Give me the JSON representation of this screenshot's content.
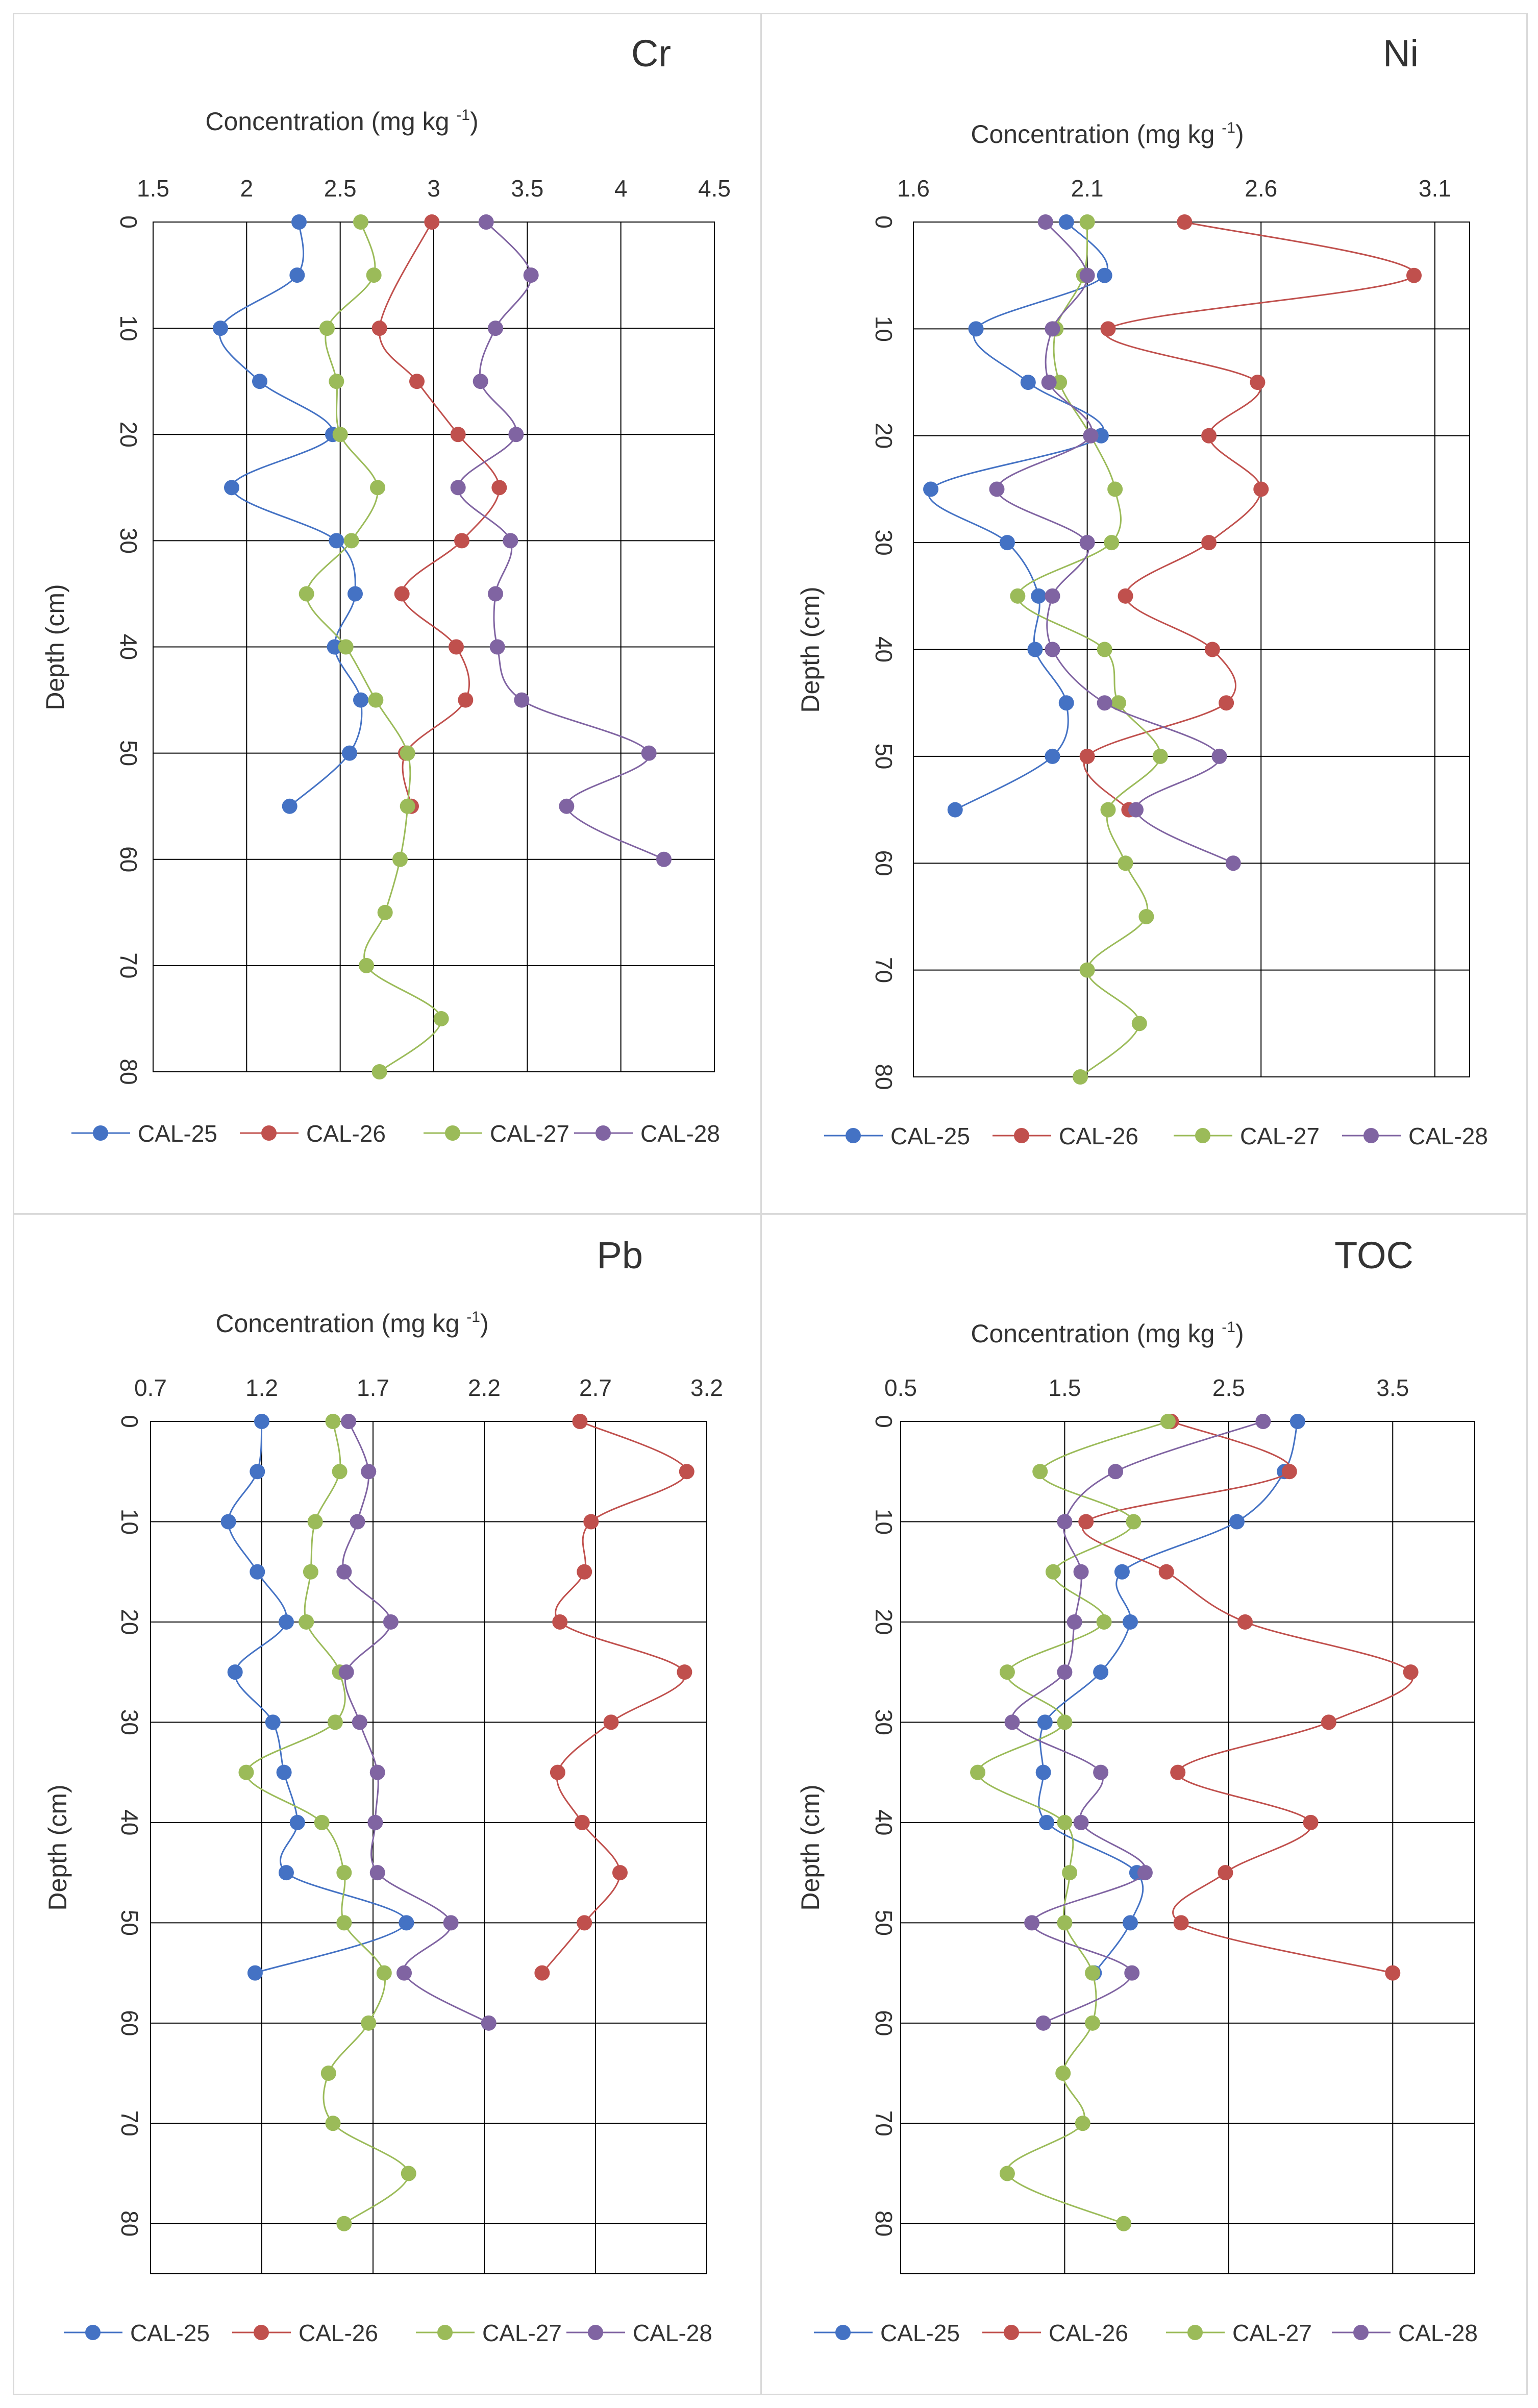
{
  "colors": {
    "CAL-25": "#4472c4",
    "CAL-26": "#c0504d",
    "CAL-27": "#9bbb59",
    "CAL-28": "#8064a2",
    "grid": "#000000",
    "text": "#333333"
  },
  "chart_data": [
    {
      "type": "line",
      "title": "Cr",
      "xlabel": "Concentration (mg kg",
      "xlabel_sup": "-1",
      "xlabel_close": ")",
      "ylabel": "Depth (cm)",
      "xlim": [
        1.5,
        4.5
      ],
      "xticks": [
        1.5,
        2,
        2.5,
        3,
        3.5,
        4,
        4.5
      ],
      "xtick_labels": [
        "1.5",
        "2",
        "2.5",
        "3",
        "3.5",
        "4",
        "4.5"
      ],
      "ylim": [
        0,
        80
      ],
      "yticks": [
        0,
        10,
        20,
        30,
        40,
        50,
        60,
        70,
        80
      ],
      "ytick_labels": [
        "0",
        "10",
        "20",
        "30",
        "40",
        "50",
        "60",
        "70",
        "80"
      ],
      "legend": "bottom",
      "series": [
        {
          "name": "CAL-25",
          "depth": [
            0,
            5,
            10,
            15,
            20,
            25,
            30,
            35,
            40,
            45,
            50,
            55
          ],
          "values": [
            2.28,
            2.27,
            1.86,
            2.07,
            2.46,
            1.92,
            2.48,
            2.58,
            2.47,
            2.61,
            2.55,
            2.23
          ]
        },
        {
          "name": "CAL-26",
          "depth": [
            0,
            10,
            15,
            20,
            25,
            30,
            35,
            40,
            45,
            50,
            55
          ],
          "values": [
            2.99,
            2.71,
            2.91,
            3.13,
            3.35,
            3.15,
            2.83,
            3.12,
            3.17,
            2.85,
            2.88
          ]
        },
        {
          "name": "CAL-27",
          "depth": [
            0,
            5,
            10,
            15,
            20,
            25,
            30,
            35,
            40,
            45,
            50,
            55,
            60,
            65,
            70,
            75,
            80
          ],
          "values": [
            2.61,
            2.68,
            2.43,
            2.48,
            2.5,
            2.7,
            2.56,
            2.32,
            2.53,
            2.69,
            2.86,
            2.86,
            2.82,
            2.74,
            2.64,
            3.04,
            2.71
          ]
        },
        {
          "name": "CAL-28",
          "depth": [
            0,
            5,
            10,
            15,
            20,
            25,
            30,
            35,
            40,
            45,
            50,
            55,
            60
          ],
          "values": [
            3.28,
            3.52,
            3.33,
            3.25,
            3.44,
            3.13,
            3.41,
            3.33,
            3.34,
            3.47,
            4.15,
            3.71,
            4.23
          ]
        }
      ]
    },
    {
      "type": "line",
      "title": "Ni",
      "xlabel": "Concentration (mg kg",
      "xlabel_sup": "-1",
      "xlabel_close": ")",
      "ylabel": "Depth (cm)",
      "xlim": [
        1.6,
        3.2
      ],
      "xticks": [
        1.6,
        2.1,
        2.6,
        3.1
      ],
      "xtick_labels": [
        "1.6",
        "2.1",
        "2.6",
        "3.1"
      ],
      "ylim": [
        0,
        80
      ],
      "yticks": [
        0,
        10,
        20,
        30,
        40,
        50,
        60,
        70,
        80
      ],
      "ytick_labels": [
        "0",
        "10",
        "20",
        "30",
        "40",
        "50",
        "60",
        "70",
        "80"
      ],
      "legend": "bottom",
      "series": [
        {
          "name": "CAL-25",
          "depth": [
            0,
            5,
            10,
            15,
            20,
            25,
            30,
            35,
            40,
            45,
            50,
            55
          ],
          "values": [
            2.04,
            2.15,
            1.78,
            1.93,
            2.14,
            1.65,
            1.87,
            1.96,
            1.95,
            2.04,
            2.0,
            1.72
          ]
        },
        {
          "name": "CAL-26",
          "depth": [
            0,
            5,
            10,
            15,
            20,
            25,
            30,
            35,
            40,
            45,
            50,
            55
          ],
          "values": [
            2.38,
            3.04,
            2.16,
            2.59,
            2.45,
            2.6,
            2.45,
            2.21,
            2.46,
            2.5,
            2.1,
            2.22
          ]
        },
        {
          "name": "CAL-27",
          "depth": [
            0,
            5,
            10,
            15,
            20,
            25,
            30,
            35,
            40,
            45,
            50,
            55,
            60,
            65,
            70,
            75,
            80
          ],
          "values": [
            2.1,
            2.09,
            2.01,
            2.02,
            2.11,
            2.18,
            2.17,
            1.9,
            2.15,
            2.19,
            2.31,
            2.16,
            2.21,
            2.27,
            2.1,
            2.25,
            2.08
          ]
        },
        {
          "name": "CAL-28",
          "depth": [
            0,
            5,
            10,
            15,
            20,
            25,
            30,
            35,
            40,
            45,
            50,
            55,
            60
          ],
          "values": [
            1.98,
            2.1,
            2.0,
            1.99,
            2.11,
            1.84,
            2.1,
            2.0,
            2.0,
            2.15,
            2.48,
            2.24,
            2.52
          ]
        }
      ]
    },
    {
      "type": "line",
      "title": "Pb",
      "xlabel": "Concentration (mg kg",
      "xlabel_sup": "-1",
      "xlabel_close": ")",
      "ylabel": "Depth (cm)",
      "xlim": [
        0.7,
        3.2
      ],
      "xticks": [
        0.7,
        1.2,
        1.7,
        2.2,
        2.7,
        3.2
      ],
      "xtick_labels": [
        "0.7",
        "1.2",
        "1.7",
        "2.2",
        "2.7",
        "3.2"
      ],
      "ylim": [
        0,
        85
      ],
      "yticks": [
        0,
        10,
        20,
        30,
        40,
        50,
        60,
        70,
        80
      ],
      "ytick_labels": [
        "0",
        "10",
        "20",
        "30",
        "40",
        "50",
        "60",
        "70",
        "80"
      ],
      "legend": "bottom",
      "series": [
        {
          "name": "CAL-25",
          "depth": [
            0,
            5,
            10,
            15,
            20,
            25,
            30,
            35,
            40,
            45,
            50,
            55
          ],
          "values": [
            1.2,
            1.18,
            1.05,
            1.18,
            1.31,
            1.08,
            1.25,
            1.3,
            1.36,
            1.31,
            1.85,
            1.17
          ]
        },
        {
          "name": "CAL-26",
          "depth": [
            0,
            5,
            10,
            15,
            20,
            25,
            30,
            35,
            40,
            45,
            50,
            55
          ],
          "values": [
            2.63,
            3.11,
            2.68,
            2.65,
            2.54,
            3.1,
            2.77,
            2.53,
            2.64,
            2.81,
            2.65,
            2.46
          ]
        },
        {
          "name": "CAL-27",
          "depth": [
            0,
            5,
            10,
            15,
            20,
            25,
            30,
            35,
            40,
            45,
            50,
            55,
            60,
            65,
            70,
            75,
            80
          ],
          "values": [
            1.52,
            1.55,
            1.44,
            1.42,
            1.4,
            1.55,
            1.53,
            1.13,
            1.47,
            1.57,
            1.57,
            1.75,
            1.68,
            1.5,
            1.52,
            1.86,
            1.57
          ]
        },
        {
          "name": "CAL-28",
          "depth": [
            0,
            5,
            10,
            15,
            20,
            25,
            30,
            35,
            40,
            45,
            50,
            55,
            60
          ],
          "values": [
            1.59,
            1.68,
            1.63,
            1.57,
            1.78,
            1.58,
            1.64,
            1.72,
            1.71,
            1.72,
            2.05,
            1.84,
            2.22
          ]
        }
      ]
    },
    {
      "type": "line",
      "title": "TOC",
      "xlabel": "Concentration (mg kg",
      "xlabel_sup": "-1",
      "xlabel_close": ")",
      "ylabel": "Depth (cm)",
      "xlim": [
        0.5,
        4.0
      ],
      "xticks": [
        0.5,
        1.5,
        2.5,
        3.5
      ],
      "xtick_labels": [
        "0.5",
        "1.5",
        "2.5",
        "3.5"
      ],
      "ylim": [
        0,
        85
      ],
      "yticks": [
        0,
        10,
        20,
        30,
        40,
        50,
        60,
        70,
        80
      ],
      "ytick_labels": [
        "0",
        "10",
        "20",
        "30",
        "40",
        "50",
        "60",
        "70",
        "80"
      ],
      "legend": "bottom",
      "series": [
        {
          "name": "CAL-25",
          "depth": [
            0,
            5,
            10,
            15,
            20,
            25,
            30,
            35,
            40,
            45,
            50,
            55
          ],
          "values": [
            2.92,
            2.84,
            2.55,
            1.85,
            1.9,
            1.72,
            1.38,
            1.37,
            1.39,
            1.94,
            1.9,
            1.68
          ]
        },
        {
          "name": "CAL-26",
          "depth": [
            0,
            5,
            10,
            15,
            20,
            25,
            30,
            35,
            40,
            45,
            50,
            55
          ],
          "values": [
            2.15,
            2.87,
            1.63,
            2.12,
            2.6,
            3.61,
            3.11,
            2.19,
            3.0,
            2.48,
            2.21,
            3.5
          ]
        },
        {
          "name": "CAL-27",
          "depth": [
            0,
            5,
            10,
            15,
            20,
            25,
            30,
            35,
            40,
            45,
            50,
            55,
            60,
            65,
            70,
            75,
            80
          ],
          "values": [
            2.13,
            1.35,
            1.92,
            1.43,
            1.74,
            1.15,
            1.5,
            0.97,
            1.5,
            1.53,
            1.5,
            1.67,
            1.67,
            1.49,
            1.61,
            1.15,
            1.86
          ]
        },
        {
          "name": "CAL-28",
          "depth": [
            0,
            5,
            10,
            15,
            20,
            25,
            30,
            35,
            40,
            45,
            50,
            55,
            60
          ],
          "values": [
            2.71,
            1.81,
            1.5,
            1.6,
            1.56,
            1.5,
            1.18,
            1.72,
            1.6,
            1.99,
            1.3,
            1.91,
            1.37
          ]
        }
      ]
    }
  ]
}
